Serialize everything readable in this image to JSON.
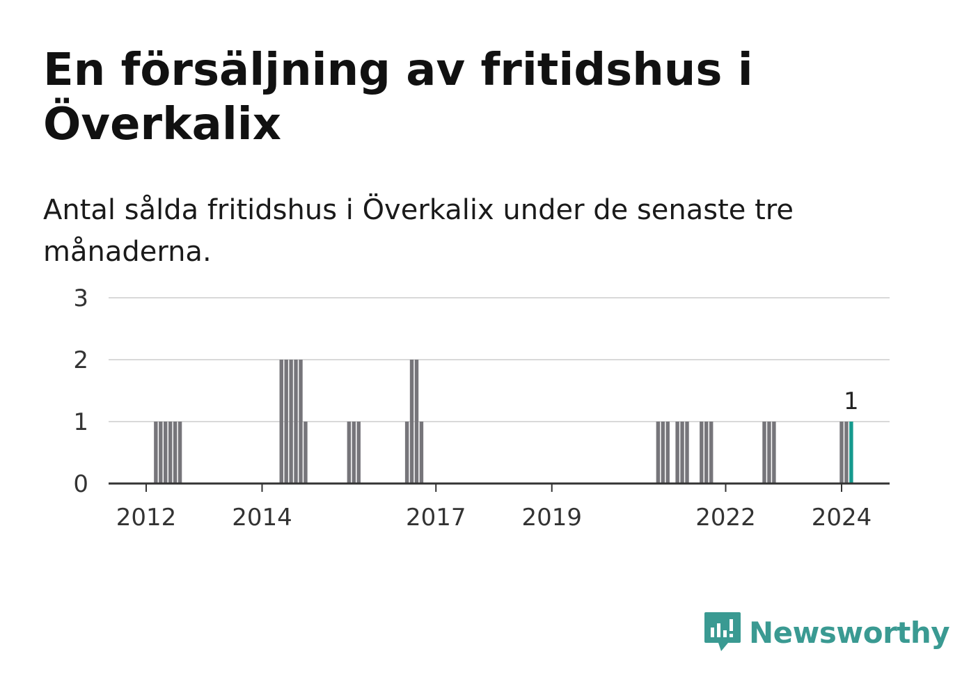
{
  "chart_data": {
    "type": "bar",
    "title": "En försäljning av fritidshus i Överkalix",
    "subtitle": "Antal sålda fritidshus i Överkalix under de senaste tre månaderna.",
    "xlabel": "",
    "ylabel": "",
    "ylim": [
      0,
      3
    ],
    "y_ticks": [
      0,
      1,
      2,
      3
    ],
    "x_ticks": [
      "2012",
      "2014",
      "2017",
      "2019",
      "2022",
      "2024"
    ],
    "grid": true,
    "x": [
      "2012-03",
      "2012-04",
      "2012-05",
      "2012-06",
      "2012-07",
      "2012-08",
      "2014-05",
      "2014-06",
      "2014-07",
      "2014-08",
      "2014-09",
      "2014-10",
      "2015-07",
      "2015-08",
      "2015-09",
      "2016-07",
      "2016-08",
      "2016-09",
      "2016-10",
      "2020-11",
      "2020-12",
      "2021-01",
      "2021-03",
      "2021-04",
      "2021-05",
      "2021-08",
      "2021-09",
      "2021-10",
      "2022-09",
      "2022-10",
      "2022-11",
      "2024-01",
      "2024-02",
      "2024-03"
    ],
    "values": [
      1,
      1,
      1,
      1,
      1,
      1,
      2,
      2,
      2,
      2,
      2,
      1,
      1,
      1,
      1,
      1,
      2,
      2,
      1,
      1,
      1,
      1,
      1,
      1,
      1,
      1,
      1,
      1,
      1,
      1,
      1,
      1,
      1,
      1
    ],
    "highlight_last": true,
    "data_labels": [
      {
        "x": "2024-03",
        "text": "1"
      }
    ],
    "colors": {
      "bar": "#76757a",
      "highlight": "#159a8e",
      "grid": "#d9d9d9",
      "axis": "#333333"
    }
  },
  "brand": {
    "name": "Newsworthy",
    "color": "#3a9a92"
  }
}
